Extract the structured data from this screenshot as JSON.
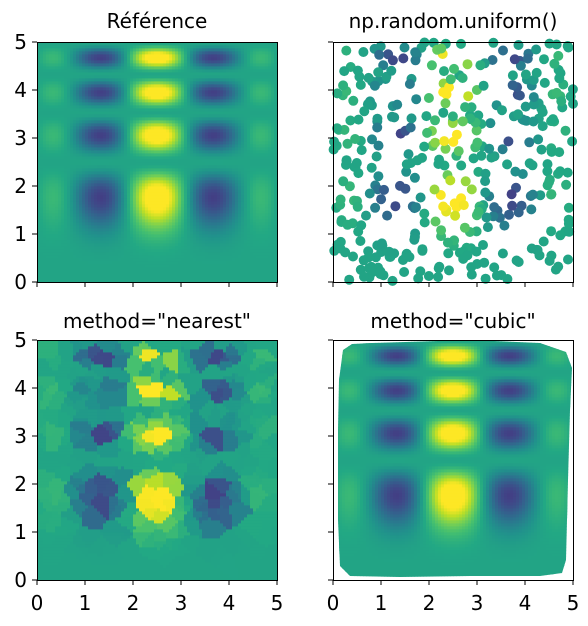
{
  "chart_data": [
    {
      "type": "heatmap",
      "title": "Référence",
      "xlim": [
        0,
        5
      ],
      "ylim": [
        0,
        5
      ],
      "yticks": [
        "0",
        "1",
        "2",
        "3",
        "4",
        "5"
      ],
      "xticks": [
        "0",
        "1",
        "2",
        "3",
        "4",
        "5"
      ],
      "show_xticklabels": false,
      "show_yticklabels": true,
      "colormap": "viridis",
      "function": "x*(1-x)*cos(4*pi*x)*sin(4*pi*y^2)^2 on [0,1]^2, scaled to [0,5]^2"
    },
    {
      "type": "scatter",
      "title": "np.random.uniform()",
      "xlim": [
        0,
        5
      ],
      "ylim": [
        0,
        5
      ],
      "yticks": [
        "0",
        "1",
        "2",
        "3",
        "4",
        "5"
      ],
      "xticks": [
        "0",
        "1",
        "2",
        "3",
        "4",
        "5"
      ],
      "show_xticklabels": false,
      "show_yticklabels": false,
      "colormap": "viridis",
      "n_points": 400
    },
    {
      "type": "heatmap",
      "title": "method=\"nearest\"",
      "xlim": [
        0,
        5
      ],
      "ylim": [
        0,
        5
      ],
      "yticks": [
        "0",
        "1",
        "2",
        "3",
        "4",
        "5"
      ],
      "xticks": [
        "0",
        "1",
        "2",
        "3",
        "4",
        "5"
      ],
      "show_xticklabels": true,
      "show_yticklabels": true,
      "colormap": "viridis"
    },
    {
      "type": "heatmap",
      "title": "method=\"cubic\"",
      "xlim": [
        0,
        5
      ],
      "ylim": [
        0,
        5
      ],
      "yticks": [
        "0",
        "1",
        "2",
        "3",
        "4",
        "5"
      ],
      "xticks": [
        "0",
        "1",
        "2",
        "3",
        "4",
        "5"
      ],
      "show_xticklabels": true,
      "show_yticklabels": false,
      "colormap": "viridis"
    }
  ]
}
